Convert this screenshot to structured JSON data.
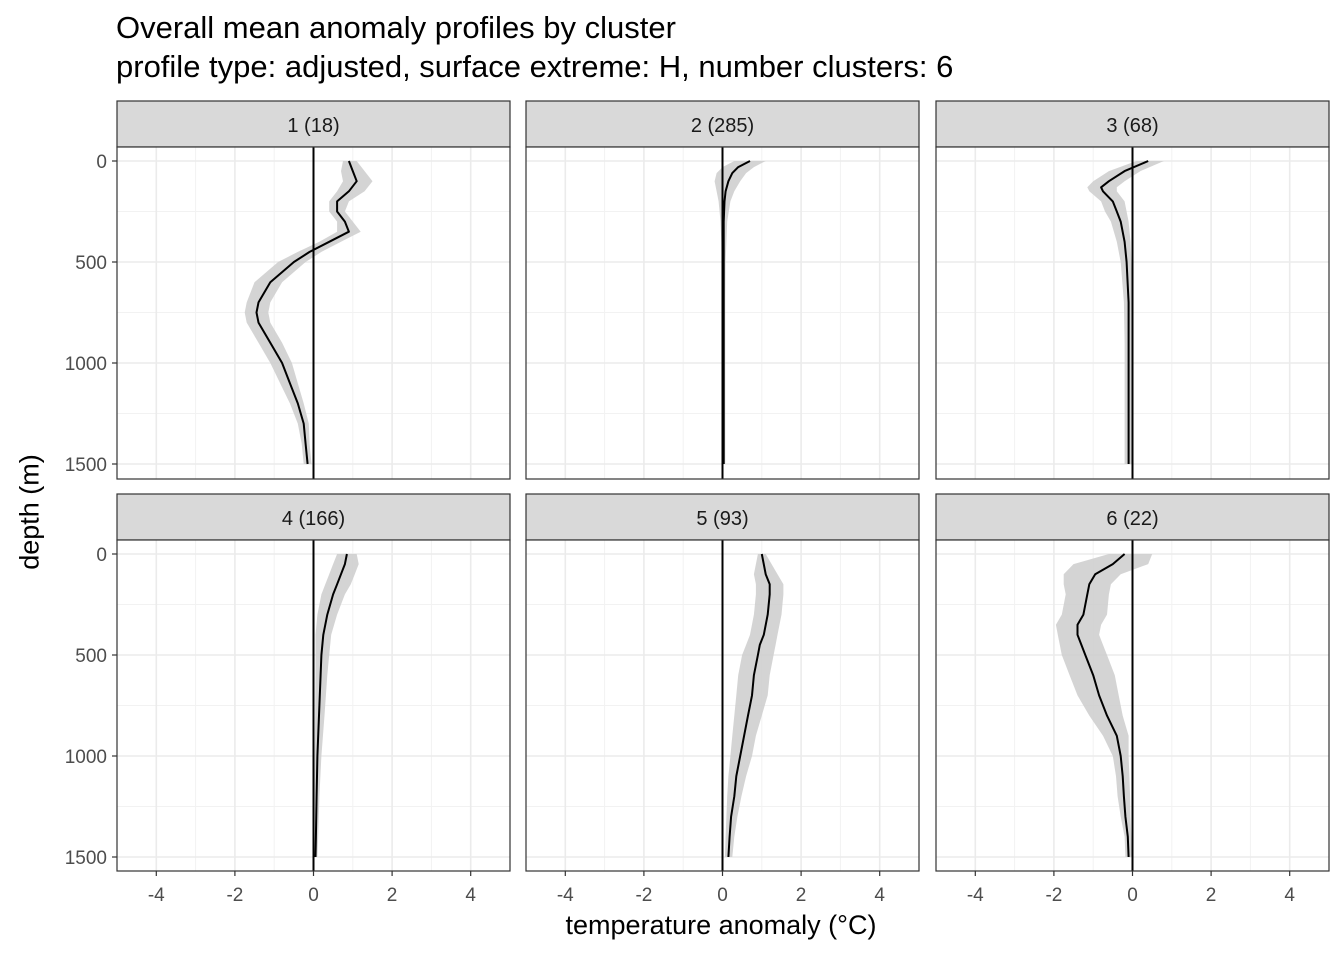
{
  "title": "Overall mean anomaly profiles by cluster",
  "subtitle": "profile type: adjusted, surface extreme: H, number clusters: 6",
  "chart_data": {
    "type": "line",
    "title": "Overall mean anomaly profiles by cluster",
    "subtitle": "profile type: adjusted, surface extreme: H, number clusters: 6",
    "xlabel": "temperature anomaly (°C)",
    "ylabel": "depth (m)",
    "xlim": [
      -5,
      5
    ],
    "ylim": [
      0,
      1500
    ],
    "y_reversed": true,
    "x_ticks": [
      -4,
      -2,
      0,
      2,
      4
    ],
    "y_ticks": [
      0,
      500,
      1000,
      1500
    ],
    "reference_line_x": 0,
    "grid": true,
    "facets": [
      {
        "label": "1 (18)",
        "depth": [
          0,
          50,
          100,
          150,
          200,
          250,
          300,
          350,
          400,
          450,
          500,
          600,
          700,
          750,
          800,
          900,
          1000,
          1100,
          1200,
          1300,
          1400,
          1500
        ],
        "mean": [
          0.9,
          1.0,
          1.1,
          0.9,
          0.6,
          0.6,
          0.8,
          0.9,
          0.4,
          -0.1,
          -0.5,
          -1.1,
          -1.4,
          -1.45,
          -1.4,
          -1.1,
          -0.8,
          -0.6,
          -0.4,
          -0.25,
          -0.2,
          -0.15
        ],
        "lower": [
          0.75,
          0.7,
          0.75,
          0.6,
          0.4,
          0.4,
          0.6,
          0.6,
          0.15,
          -0.4,
          -0.9,
          -1.5,
          -1.7,
          -1.75,
          -1.7,
          -1.4,
          -1.1,
          -0.85,
          -0.6,
          -0.4,
          -0.3,
          -0.25
        ],
        "upper": [
          1.1,
          1.3,
          1.5,
          1.3,
          0.9,
          0.8,
          1.0,
          1.2,
          0.7,
          0.2,
          -0.2,
          -0.8,
          -1.1,
          -1.15,
          -1.1,
          -0.8,
          -0.55,
          -0.4,
          -0.25,
          -0.12,
          -0.1,
          -0.05
        ]
      },
      {
        "label": "2 (285)",
        "depth": [
          0,
          30,
          60,
          100,
          150,
          200,
          300,
          400,
          500,
          700,
          900,
          1100,
          1300,
          1500
        ],
        "mean": [
          0.7,
          0.4,
          0.25,
          0.15,
          0.08,
          0.05,
          0.03,
          0.03,
          0.03,
          0.03,
          0.03,
          0.03,
          0.03,
          0.03
        ],
        "lower": [
          0.3,
          0.0,
          -0.15,
          -0.2,
          -0.15,
          -0.1,
          -0.05,
          -0.03,
          -0.02,
          -0.02,
          -0.02,
          -0.02,
          -0.02,
          -0.02
        ],
        "upper": [
          1.1,
          0.8,
          0.6,
          0.45,
          0.3,
          0.2,
          0.12,
          0.1,
          0.08,
          0.07,
          0.07,
          0.07,
          0.07,
          0.07
        ]
      },
      {
        "label": "3 (68)",
        "depth": [
          0,
          50,
          100,
          130,
          150,
          200,
          250,
          300,
          400,
          500,
          700,
          900,
          1100,
          1300,
          1500
        ],
        "mean": [
          0.4,
          -0.2,
          -0.6,
          -0.8,
          -0.75,
          -0.5,
          -0.4,
          -0.3,
          -0.2,
          -0.15,
          -0.1,
          -0.1,
          -0.1,
          -0.1,
          -0.1
        ],
        "lower": [
          0.1,
          -0.6,
          -1.0,
          -1.15,
          -1.1,
          -0.8,
          -0.7,
          -0.55,
          -0.4,
          -0.3,
          -0.22,
          -0.2,
          -0.2,
          -0.2,
          -0.2
        ],
        "upper": [
          0.8,
          0.2,
          -0.2,
          -0.4,
          -0.4,
          -0.2,
          -0.15,
          -0.1,
          -0.05,
          -0.03,
          0.0,
          0.0,
          0.0,
          0.0,
          0.0
        ]
      },
      {
        "label": "4 (166)",
        "depth": [
          0,
          50,
          100,
          150,
          200,
          300,
          400,
          500,
          600,
          800,
          1000,
          1200,
          1400,
          1500
        ],
        "mean": [
          0.85,
          0.8,
          0.7,
          0.6,
          0.5,
          0.35,
          0.25,
          0.2,
          0.18,
          0.14,
          0.1,
          0.08,
          0.06,
          0.05
        ],
        "lower": [
          0.6,
          0.5,
          0.4,
          0.3,
          0.2,
          0.1,
          0.05,
          0.05,
          0.05,
          0.04,
          0.03,
          0.02,
          0.01,
          0.01
        ],
        "upper": [
          1.1,
          1.15,
          1.05,
          0.95,
          0.8,
          0.6,
          0.45,
          0.4,
          0.35,
          0.28,
          0.2,
          0.15,
          0.12,
          0.1
        ]
      },
      {
        "label": "5 (93)",
        "depth": [
          0,
          100,
          150,
          200,
          300,
          400,
          450,
          500,
          600,
          700,
          800,
          900,
          1000,
          1100,
          1200,
          1300,
          1400,
          1500
        ],
        "mean": [
          1.0,
          1.1,
          1.2,
          1.2,
          1.15,
          1.05,
          0.95,
          0.9,
          0.8,
          0.75,
          0.65,
          0.55,
          0.45,
          0.35,
          0.3,
          0.22,
          0.18,
          0.15
        ],
        "lower": [
          0.9,
          0.8,
          0.85,
          0.85,
          0.8,
          0.7,
          0.6,
          0.5,
          0.4,
          0.35,
          0.3,
          0.25,
          0.2,
          0.15,
          0.12,
          0.1,
          0.08,
          0.06
        ],
        "upper": [
          1.1,
          1.4,
          1.55,
          1.55,
          1.5,
          1.4,
          1.35,
          1.3,
          1.2,
          1.15,
          1.0,
          0.85,
          0.75,
          0.6,
          0.48,
          0.38,
          0.3,
          0.25
        ]
      },
      {
        "label": "6 (22)",
        "depth": [
          0,
          50,
          100,
          150,
          200,
          300,
          350,
          400,
          450,
          500,
          600,
          700,
          800,
          900,
          1000,
          1100,
          1200,
          1300,
          1400,
          1500
        ],
        "mean": [
          -0.2,
          -0.5,
          -0.95,
          -1.1,
          -1.15,
          -1.25,
          -1.4,
          -1.4,
          -1.3,
          -1.2,
          -1.0,
          -0.85,
          -0.65,
          -0.4,
          -0.3,
          -0.25,
          -0.22,
          -0.18,
          -0.12,
          -0.1
        ],
        "lower": [
          -0.6,
          -1.5,
          -1.75,
          -1.75,
          -1.7,
          -1.8,
          -1.95,
          -1.9,
          -1.85,
          -1.8,
          -1.6,
          -1.4,
          -1.1,
          -0.75,
          -0.5,
          -0.42,
          -0.38,
          -0.3,
          -0.2,
          -0.18
        ],
        "upper": [
          0.5,
          0.4,
          -0.3,
          -0.55,
          -0.6,
          -0.65,
          -0.8,
          -0.85,
          -0.75,
          -0.65,
          -0.45,
          -0.35,
          -0.25,
          -0.1,
          -0.1,
          -0.08,
          -0.06,
          -0.05,
          -0.03,
          -0.02
        ]
      }
    ]
  }
}
